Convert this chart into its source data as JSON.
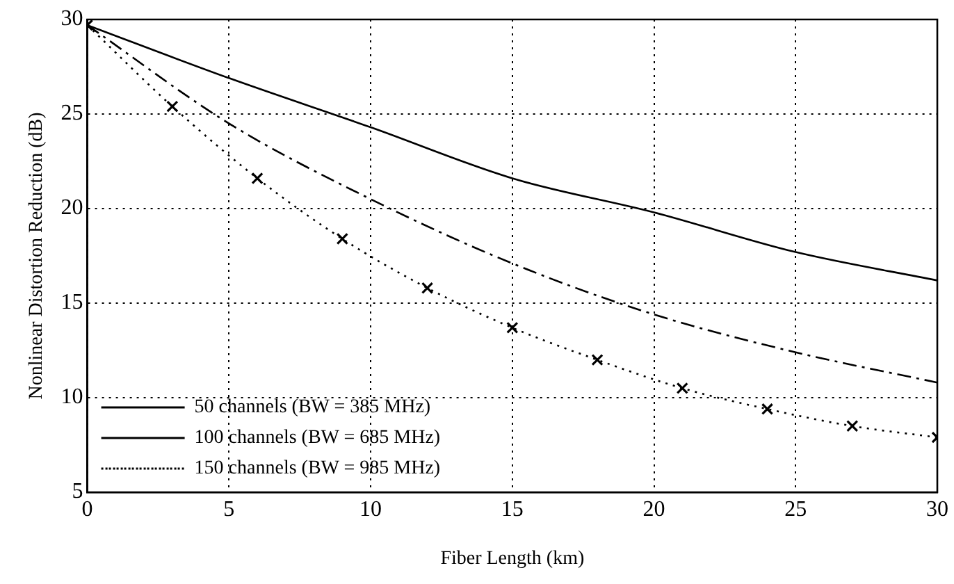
{
  "chart_data": {
    "type": "line",
    "xlabel": "Fiber Length (km)",
    "ylabel": "Nonlinear Distortion Reduction (dB)",
    "xlim": [
      0,
      30
    ],
    "xticks": [
      0,
      5,
      10,
      15,
      20,
      25,
      30
    ],
    "ylim": [
      5,
      30
    ],
    "yticks": [
      5,
      10,
      15,
      20,
      25,
      30
    ],
    "grid": true,
    "legend": "bottom left",
    "series": [
      {
        "name": "50 channels (BW = 385 MHz)",
        "color": "#000000",
        "line_style": "solid",
        "marker": "none",
        "x": [
          0,
          5,
          10,
          15,
          20,
          25,
          30
        ],
        "values": [
          29.7,
          26.9,
          24.3,
          21.6,
          19.8,
          17.7,
          16.2
        ]
      },
      {
        "name": "100 channels (BW = 685 MHz)",
        "color": "#000000",
        "line_style": "dashdot",
        "marker": "none",
        "x": [
          0,
          5,
          10,
          15,
          20,
          25,
          30
        ],
        "values": [
          29.7,
          24.5,
          20.5,
          17.1,
          14.4,
          12.4,
          10.8
        ]
      },
      {
        "name": "150 channels (BW = 985 MHz)",
        "color": "#000000",
        "line_style": "dotted",
        "marker": "cross",
        "x": [
          0,
          3,
          6,
          9,
          12,
          15,
          18,
          21,
          24,
          27,
          30
        ],
        "values": [
          29.7,
          25.4,
          21.6,
          18.4,
          15.8,
          13.7,
          12.0,
          10.5,
          9.4,
          8.5,
          7.9
        ]
      }
    ]
  }
}
